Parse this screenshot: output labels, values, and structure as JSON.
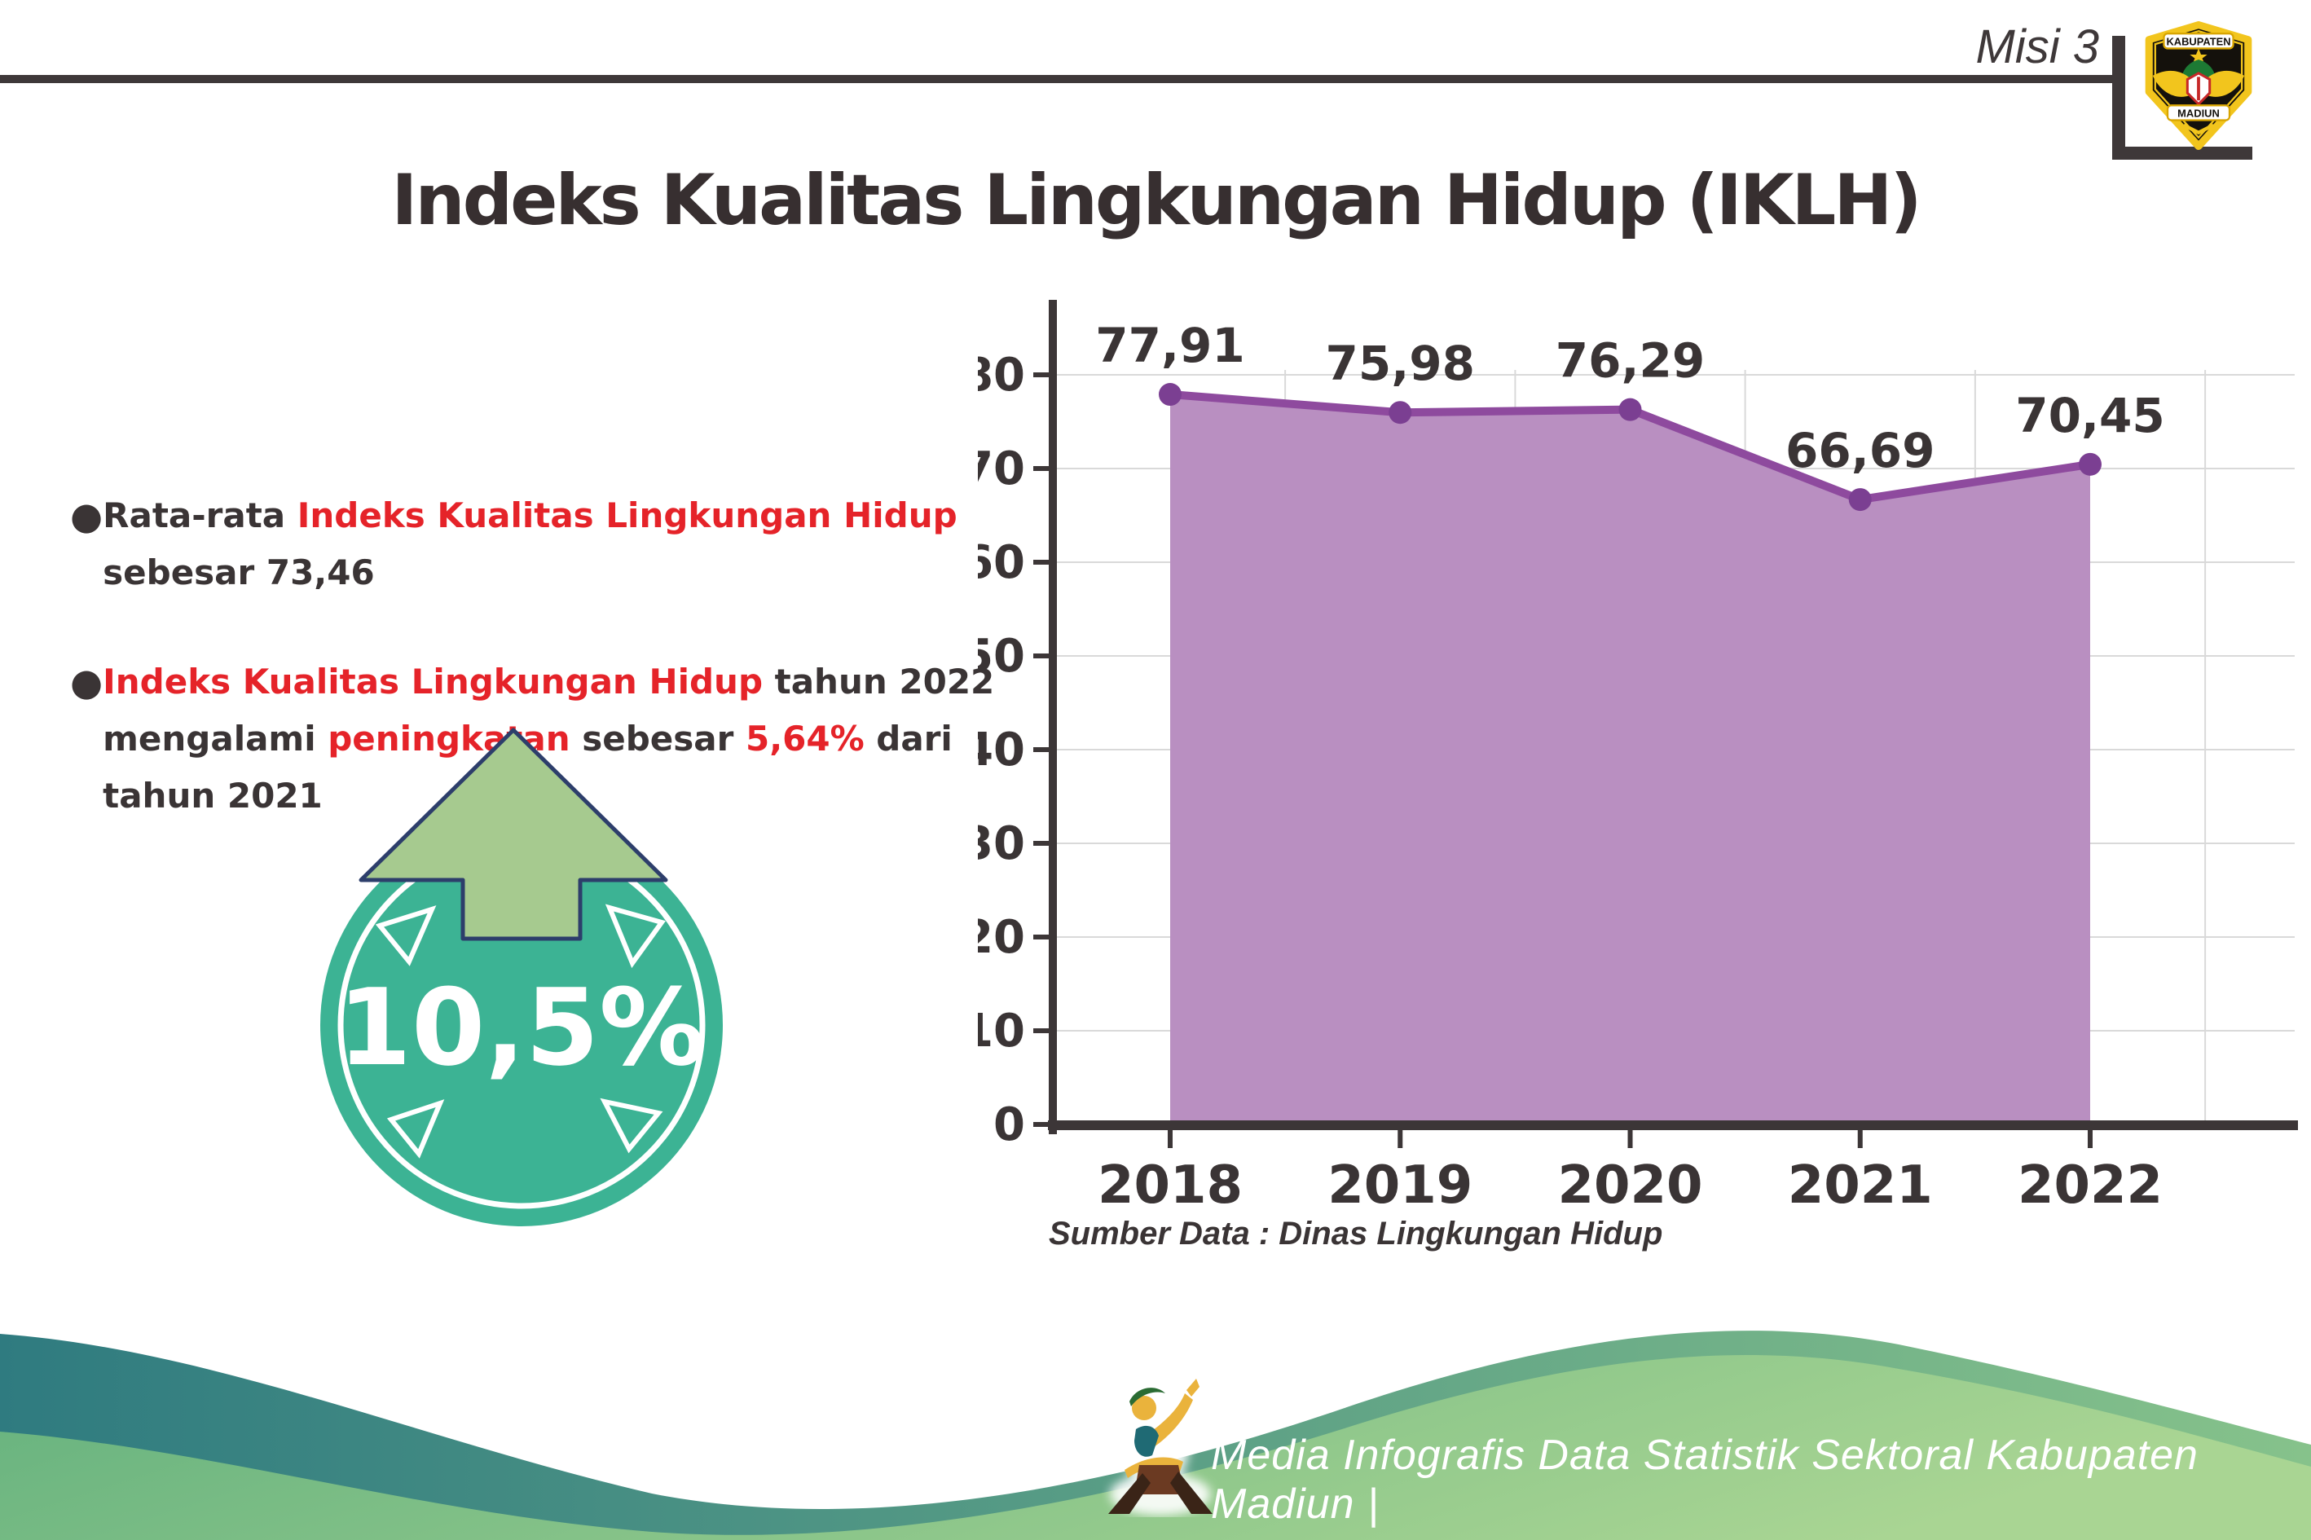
{
  "header": {
    "misi_label": "Misi 3",
    "logo": {
      "top_text": "KABUPATEN",
      "bottom_text": "MADIUN"
    }
  },
  "title": "Indeks Kualitas Lingkungan Hidup (IKLH)",
  "bullets": [
    {
      "segments": [
        {
          "text": "Rata-rata ",
          "color": "dark"
        },
        {
          "text": "Indeks Kualitas Lingkungan Hidup",
          "color": "red"
        },
        {
          "text": "\nsebesar 73,46",
          "color": "dark"
        }
      ]
    },
    {
      "segments": [
        {
          "text": "Indeks Kualitas Lingkungan Hidup",
          "color": "red"
        },
        {
          "text": " tahun 2022\nmengalami ",
          "color": "dark"
        },
        {
          "text": "peningkatan",
          "color": "red"
        },
        {
          "text": " sebesar ",
          "color": "dark"
        },
        {
          "text": "5,64%",
          "color": "red"
        },
        {
          "text": " dari\ntahun 2021",
          "color": "dark"
        }
      ]
    }
  ],
  "badge": {
    "value": "10,5%",
    "circle_color": "#3cb394",
    "arrow_color": "#a6ca8f",
    "arrow_outline": "#2d3e6b"
  },
  "chart_data": {
    "type": "area",
    "categories": [
      "2018",
      "2019",
      "2020",
      "2021",
      "2022"
    ],
    "values": [
      77.91,
      75.98,
      76.29,
      66.69,
      70.45
    ],
    "value_labels": [
      "77,91",
      "75,98",
      "76,29",
      "66,69",
      "70,45"
    ],
    "title": "",
    "xlabel": "",
    "ylabel": "",
    "ylim": [
      0,
      80
    ],
    "ytick_step": 10,
    "grid": true,
    "legend": "none",
    "line_color": "#8e4a9e",
    "marker_color": "#7b3f92",
    "fill_color": "#b98fc1",
    "axis_color": "#3c3637",
    "grid_color": "#d9d9d9",
    "source": "Sumber Data : Dinas Lingkungan Hidup"
  },
  "footer": {
    "text": "Media Infografis Data Statistik Sektoral Kabupaten Madiun |"
  },
  "palette": {
    "dark_text": "#3a3435",
    "red_text": "#e52329",
    "teal_badge": "#3cb394",
    "arrow_green": "#a6ca8f",
    "navy_outline": "#2d3e6b",
    "purple_line": "#8e4a9e",
    "purple_fill": "#b98fc1",
    "purple_marker": "#7b3f92",
    "wave_back_start": "#2f7b80",
    "wave_back_end": "#86c28b",
    "wave_front_start": "#64b17e",
    "wave_front_end": "#a9d593",
    "logo_gold": "#f2c51d"
  }
}
